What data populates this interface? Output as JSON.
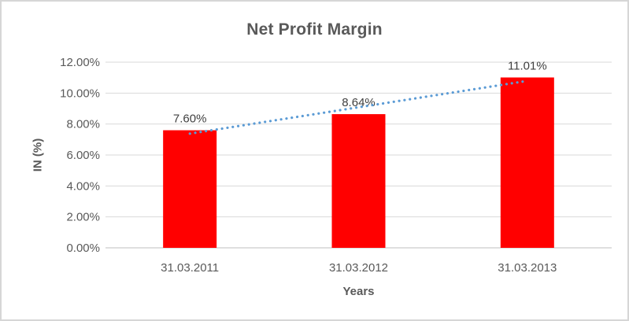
{
  "chart_data": {
    "type": "bar",
    "title": "Net Profit Margin",
    "categories": [
      "31.03.2011",
      "31.03.2012",
      "31.03.2013"
    ],
    "values": [
      7.6,
      8.64,
      11.01
    ],
    "data_labels": [
      "7.60%",
      "8.64%",
      "11.01%"
    ],
    "xlabel": "Years",
    "ylabel": "IN (%)",
    "ylim": [
      0,
      12
    ],
    "ytick_step": 2,
    "ytick_labels": [
      "0.00%",
      "2.00%",
      "4.00%",
      "6.00%",
      "8.00%",
      "10.00%",
      "12.00%"
    ],
    "grid": true,
    "legend": "none",
    "bar_color": "#FF0000",
    "trendline": {
      "type": "linear",
      "style": "dotted",
      "color": "#5B9BD5",
      "start_value": 7.38,
      "end_value": 10.79
    }
  },
  "colors": {
    "tick_text": "#595959",
    "data_label_text": "#404040",
    "gridline": "#D9D9D9",
    "axis_line": "#BFBFBF",
    "frame_border": "#D6D6D6",
    "background": "#FFFFFF"
  }
}
